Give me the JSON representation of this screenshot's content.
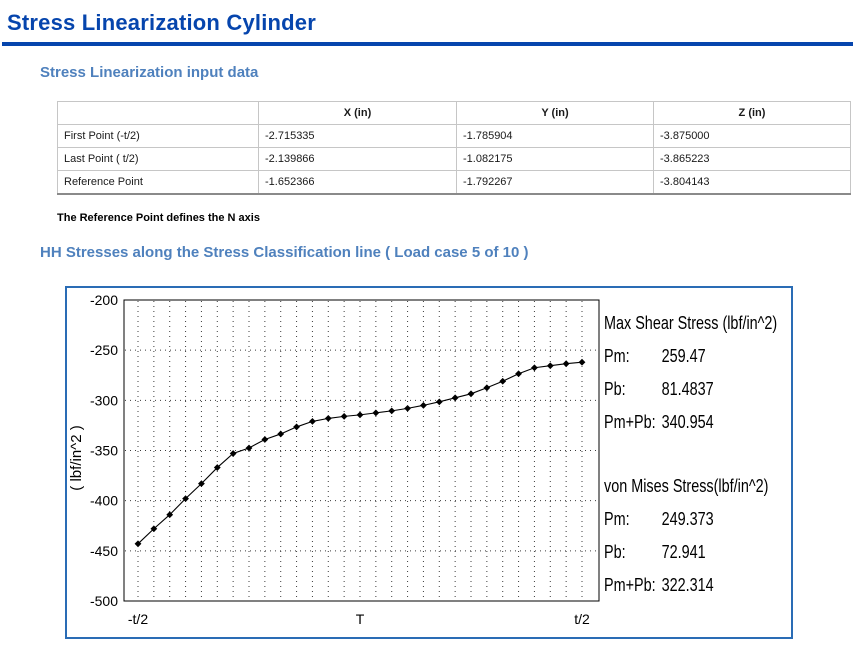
{
  "page": {
    "title": "Stress Linearization Cylinder",
    "input_section_heading": "Stress Linearization input data",
    "note": "The Reference Point defines the N axis",
    "stress_section_heading": "HH Stresses along the Stress Classification line ( Load case 5 of 10 )"
  },
  "input_table": {
    "headers": [
      "",
      "X (in)",
      "Y (in)",
      "Z (in)"
    ],
    "rows": [
      {
        "label": "First Point (-t/2)",
        "x": "-2.715335",
        "y": "-1.785904",
        "z": "-3.875000"
      },
      {
        "label": "Last Point ( t/2)",
        "x": "-2.139866",
        "y": "-1.082175",
        "z": "-3.865223"
      },
      {
        "label": "Reference Point",
        "x": "-1.652366",
        "y": "-1.792267",
        "z": "-3.804143"
      }
    ]
  },
  "chart_data": {
    "type": "line",
    "title": "",
    "xlabel": "",
    "ylabel": "( lbf/in^2 )",
    "ylim": [
      -500,
      -200
    ],
    "ytick_interval": 50,
    "x_tick_labels": [
      "-t/2",
      "T",
      "t/2"
    ],
    "x_tick_positions": [
      0,
      14,
      28
    ],
    "grid": true,
    "marker": "diamond",
    "line_color": "#000000",
    "series": [
      {
        "name": "HH stress along classification line",
        "values": [
          -443,
          -428,
          -414,
          -398,
          -383,
          -367,
          -353,
          -347.5,
          -339,
          -333.5,
          -326.5,
          -321,
          -318,
          -316,
          -314.5,
          -312.5,
          -310.5,
          -308,
          -305,
          -301.5,
          -297.5,
          -293.5,
          -287.5,
          -281,
          -273.5,
          -267.5,
          -265.5,
          -263.5,
          -262
        ]
      }
    ]
  },
  "stress_results": {
    "blocks": [
      {
        "title": "Max Shear Stress (lbf/in^2)",
        "rows": [
          {
            "label": "Pm:",
            "value": "259.47"
          },
          {
            "label": "Pb:",
            "value": "81.4837"
          },
          {
            "label": "Pm+Pb:",
            "value": "340.954"
          }
        ]
      },
      {
        "title": "von Mises Stress(lbf/in^2)",
        "rows": [
          {
            "label": "Pm:",
            "value": "249.373"
          },
          {
            "label": "Pb:",
            "value": "72.941"
          },
          {
            "label": "Pm+Pb:",
            "value": "322.314"
          }
        ]
      }
    ]
  },
  "colors": {
    "title_blue": "#0645ad",
    "heading_blue": "#4f81bd",
    "panel_border": "#2a6cb5",
    "chart_line": "#000000",
    "table_border": "#c6c6c6"
  }
}
